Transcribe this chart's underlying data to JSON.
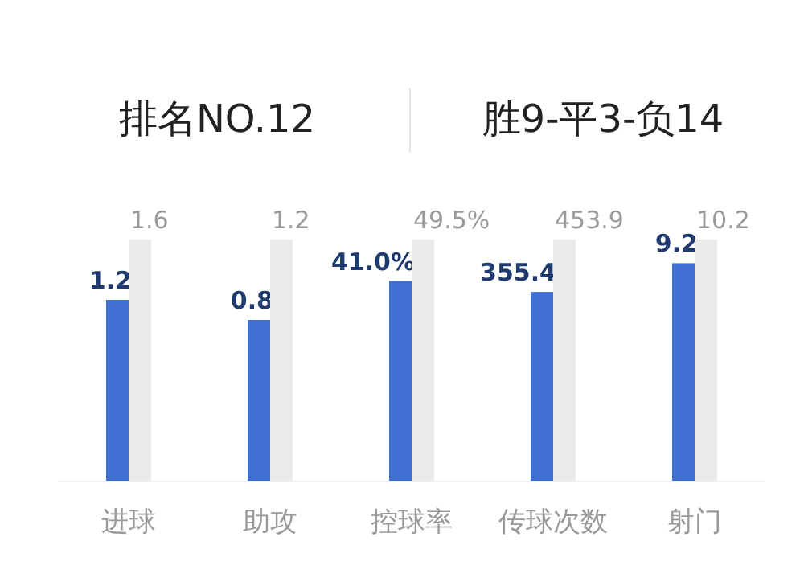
{
  "chart_data": [
    {
      "type": "other",
      "annotations": [
        "排名NO.12",
        "胜9-平3-负14"
      ]
    },
    {
      "type": "bar",
      "categories": [
        "进球"
      ],
      "tick_labels": "x",
      "data_labels": true,
      "series": [
        {
          "color": "#3f6fd0",
          "values": [
            1.2
          ],
          "value_labels": [
            "1.2"
          ]
        },
        {
          "color": "#ebebeb",
          "values": [
            1.6
          ],
          "value_labels": [
            "1.6"
          ]
        }
      ]
    },
    {
      "type": "bar",
      "categories": [
        "助攻"
      ],
      "tick_labels": "x",
      "data_labels": true,
      "series": [
        {
          "color": "#3f6fd0",
          "values": [
            0.8
          ],
          "value_labels": [
            "0.8"
          ]
        },
        {
          "color": "#ebebeb",
          "values": [
            1.2
          ],
          "value_labels": [
            "1.2"
          ]
        }
      ]
    },
    {
      "type": "bar",
      "categories": [
        "控球率"
      ],
      "tick_labels": "x",
      "data_labels": true,
      "series": [
        {
          "color": "#3f6fd0",
          "values": [
            41.0
          ],
          "value_labels": [
            "41.0%"
          ]
        },
        {
          "color": "#ebebeb",
          "values": [
            49.5
          ],
          "value_labels": [
            "49.5%"
          ]
        }
      ]
    },
    {
      "type": "bar",
      "categories": [
        "传球次数"
      ],
      "tick_labels": "x",
      "data_labels": true,
      "series": [
        {
          "color": "#3f6fd0",
          "values": [
            355.4
          ],
          "value_labels": [
            "355.4"
          ]
        },
        {
          "color": "#ebebeb",
          "values": [
            453.9
          ],
          "value_labels": [
            "453.9"
          ]
        }
      ]
    },
    {
      "type": "bar",
      "categories": [
        "射门"
      ],
      "tick_labels": "x",
      "data_labels": true,
      "series": [
        {
          "color": "#3f6fd0",
          "values": [
            9.2
          ],
          "value_labels": [
            "9.2"
          ]
        },
        {
          "color": "#ebebeb",
          "values": [
            10.2
          ],
          "value_labels": [
            "10.2"
          ]
        }
      ]
    }
  ]
}
